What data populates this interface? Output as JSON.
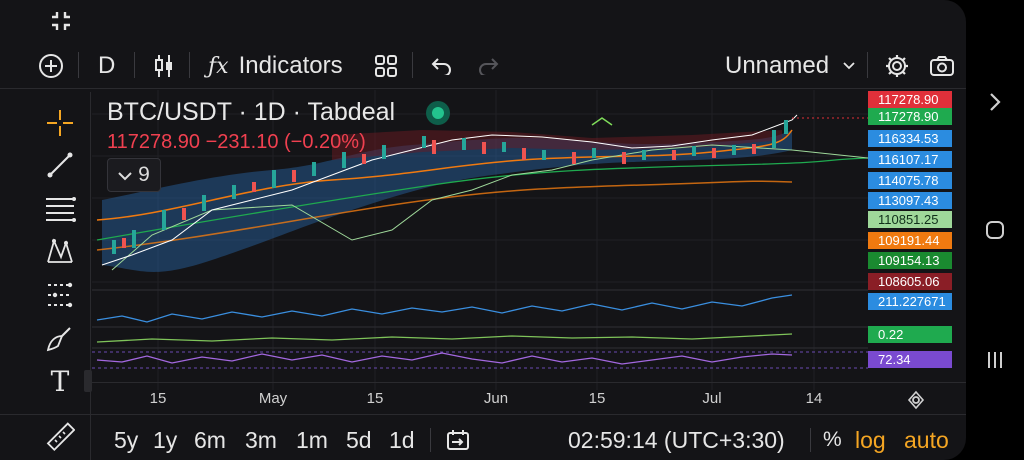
{
  "toolbar": {
    "fullscreen_icon": "collapse-icon",
    "add_icon": "plus-circle-icon",
    "interval": "D",
    "chart_type_icon": "candles-icon",
    "indicators_icon": "fx-icon",
    "indicators_label": "Indicators",
    "templates_icon": "grid-icon",
    "undo_icon": "undo-icon",
    "redo_icon": "redo-icon",
    "layout_name": "Unnamed",
    "settings_icon": "gear-icon",
    "snapshot_icon": "camera-icon"
  },
  "legend": {
    "symbol": "BTC/USDT · 1D · Tabdeal",
    "price_change": "117278.90 −231.10 (−0.20%)",
    "indicator_count": "9"
  },
  "left_tools": [
    "crosshair-icon",
    "trend-line-icon",
    "fib-icon",
    "pattern-icon",
    "prediction-icon",
    "brush-icon",
    "text-icon",
    "ruler-icon"
  ],
  "price_labels": [
    {
      "value": "117278.90",
      "color": "#e0303a"
    },
    {
      "value": "117278.90",
      "color": "#1faa4f"
    },
    {
      "value": "116334.53",
      "color": "#2b8ce0"
    },
    {
      "value": "116107.17",
      "color": "#2b8ce0"
    },
    {
      "value": "114075.78",
      "color": "#2b8ce0"
    },
    {
      "value": "113097.43",
      "color": "#2b8ce0"
    },
    {
      "value": "110851.25",
      "color": "#9fd89a"
    },
    {
      "value": "109191.44",
      "color": "#f07a10"
    },
    {
      "value": "109154.13",
      "color": "#1a8a30"
    },
    {
      "value": "108605.06",
      "color": "#8a1e26"
    }
  ],
  "pane_labels": {
    "volume_like": "211.227671",
    "indicator2": "0.22",
    "rsi": "72.34"
  },
  "x_axis": [
    "15",
    "May",
    "15",
    "Jun",
    "15",
    "Jul",
    "14"
  ],
  "bottom": {
    "ranges": [
      "5y",
      "1y",
      "6m",
      "3m",
      "1m",
      "5d",
      "1d"
    ],
    "goto_icon": "calendar-goto-icon",
    "time": "02:59:14 (UTC+3:30)",
    "percent": "%",
    "log": "log",
    "auto": "auto"
  },
  "system_nav": {
    "expand_icon": "chevron-right-icon",
    "home_icon": "home-icon",
    "recents_icon": "recents-icon"
  },
  "colors": {
    "accent_orange": "#f5a623",
    "bull": "#26a69a",
    "bear": "#ef5350"
  }
}
